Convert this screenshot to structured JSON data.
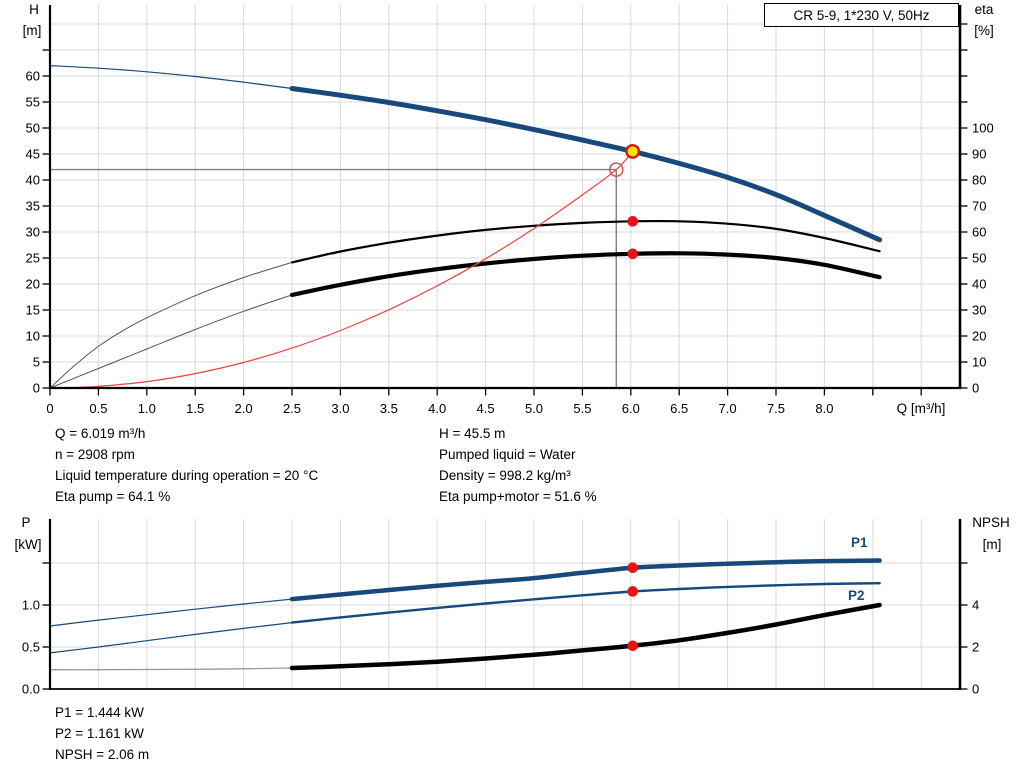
{
  "header": {
    "model_box": "CR 5-9, 1*230 V, 50Hz"
  },
  "colors": {
    "blue": "#17497c",
    "black": "#000000",
    "gray_thin": "#555555",
    "light_gray_thin": "#999999",
    "red": "#ef4040",
    "dot_red": "#ee1111",
    "duty_fill": "#ffe800",
    "duty_ring": "#dd1111",
    "grid": "#d9d9d9",
    "ref_line": "#808080",
    "axis": "#000000"
  },
  "top_chart": {
    "left_axis_title": [
      "H",
      "[m]"
    ],
    "right_axis_title": [
      "eta",
      "[%]"
    ],
    "x_axis": {
      "title": "Q [m³/h]",
      "step": 0.5,
      "ticks": 19,
      "labels": [
        "0",
        "0.5",
        "1.0",
        "1.5",
        "2.0",
        "2.5",
        "3.0",
        "3.5",
        "4.0",
        "4.5",
        "5.0",
        "5.5",
        "6.0",
        "6.5",
        "7.0",
        "7.5",
        "8.0"
      ]
    },
    "h_axis": {
      "step": 5,
      "ticks": 14,
      "labels": [
        "0",
        "5",
        "10",
        "15",
        "20",
        "25",
        "30",
        "35",
        "40",
        "45",
        "50",
        "55",
        "60"
      ]
    },
    "eta_axis": {
      "step": 10,
      "ticks": 15,
      "labels": [
        "0",
        "10",
        "20",
        "30",
        "40",
        "50",
        "60",
        "70",
        "80",
        "90",
        "100"
      ]
    }
  },
  "bottom_chart": {
    "left_axis_title": [
      "P",
      "[kW]"
    ],
    "right_axis_title": [
      "NPSH",
      "[m]"
    ],
    "p_axis": {
      "step": 0.5,
      "ticks": 4,
      "labels": [
        "0.0",
        "0.5",
        "1.0"
      ]
    },
    "npsh_axis": {
      "step": 2,
      "ticks": 4,
      "labels": [
        "0",
        "2",
        "4"
      ]
    },
    "series_labels": {
      "p1": "P1",
      "p2": "P2"
    }
  },
  "info_top": {
    "left": [
      "Q = 6.019 m³/h",
      "n = 2908 rpm",
      "Liquid temperature during operation = 20 °C",
      "Eta pump = 64.1 %"
    ],
    "right": [
      "H = 45.5 m",
      "Pumped liquid = Water",
      "Density = 998.2 kg/m³",
      "Eta pump+motor = 51.6 %"
    ]
  },
  "info_bottom": [
    "P1 = 1.444 kW",
    "P2 = 1.161 kW",
    "NPSH = 2.06 m"
  ],
  "chart_data": [
    {
      "type": "line",
      "title": "Pump head and efficiency vs flow",
      "xlabel": "Q [m³/h]",
      "x_range": [
        0,
        9.4
      ],
      "ylabel_left": "H [m]",
      "y_left_range": [
        0,
        73
      ],
      "ylabel_right": "eta [%]",
      "y_right_range": [
        0,
        146
      ],
      "grid": true,
      "series": [
        {
          "name": "qh-thin",
          "axis": "H",
          "color": "blue",
          "width": 1.2,
          "points": [
            [
              0,
              62
            ],
            [
              0.5,
              61.5
            ],
            [
              1,
              60.8
            ],
            [
              1.5,
              59.9
            ],
            [
              2,
              58.8
            ],
            [
              2.5,
              57.6
            ]
          ]
        },
        {
          "name": "qh",
          "axis": "H",
          "color": "blue",
          "width": 5,
          "points": [
            [
              2.5,
              57.6
            ],
            [
              3,
              56.3
            ],
            [
              3.5,
              54.9
            ],
            [
              4,
              53.3
            ],
            [
              4.5,
              51.6
            ],
            [
              5,
              49.7
            ],
            [
              5.5,
              47.7
            ],
            [
              6.019,
              45.5
            ],
            [
              6.5,
              43.2
            ],
            [
              7,
              40.5
            ],
            [
              7.5,
              37.2
            ],
            [
              8,
              33.2
            ],
            [
              8.57,
              28.5
            ]
          ]
        },
        {
          "name": "eta-pump-thin",
          "axis": "eta",
          "color": "gray_thin",
          "width": 1,
          "points": [
            [
              0,
              0
            ],
            [
              0.25,
              8.5
            ],
            [
              0.5,
              16
            ],
            [
              0.75,
              22
            ],
            [
              1,
              27
            ],
            [
              1.5,
              35.5
            ],
            [
              2,
              42.5
            ],
            [
              2.5,
              48.3
            ]
          ]
        },
        {
          "name": "eta-pump",
          "axis": "eta",
          "color": "black",
          "width": 2.2,
          "points": [
            [
              2.5,
              48.3
            ],
            [
              3,
              52.5
            ],
            [
              3.5,
              55.9
            ],
            [
              4,
              58.6
            ],
            [
              4.5,
              60.8
            ],
            [
              5,
              62.4
            ],
            [
              5.5,
              63.5
            ],
            [
              6.019,
              64.1
            ],
            [
              6.5,
              64.1
            ],
            [
              7,
              63.2
            ],
            [
              7.5,
              61.2
            ],
            [
              8,
              57.7
            ],
            [
              8.57,
              52.6
            ]
          ]
        },
        {
          "name": "eta-pump-motor-thin",
          "axis": "eta",
          "color": "gray_thin",
          "width": 1,
          "points": [
            [
              0,
              0
            ],
            [
              0.5,
              7.5
            ],
            [
              1,
              15
            ],
            [
              1.5,
              22.5
            ],
            [
              2,
              29.5
            ],
            [
              2.5,
              35.8
            ]
          ]
        },
        {
          "name": "eta-pump-motor",
          "axis": "eta",
          "color": "black",
          "width": 4.2,
          "points": [
            [
              2.5,
              35.8
            ],
            [
              3,
              39.7
            ],
            [
              3.5,
              43
            ],
            [
              4,
              45.7
            ],
            [
              4.5,
              47.9
            ],
            [
              5,
              49.6
            ],
            [
              5.5,
              50.9
            ],
            [
              6.019,
              51.6
            ],
            [
              6.5,
              51.8
            ],
            [
              7,
              51.3
            ],
            [
              7.5,
              50
            ],
            [
              8,
              47.4
            ],
            [
              8.57,
              42.6
            ]
          ]
        },
        {
          "name": "system-curve",
          "axis": "H",
          "color": "red",
          "width": 1.2,
          "points": [
            [
              0.2,
              0.05
            ],
            [
              0.5,
              0.31
            ],
            [
              1,
              1.23
            ],
            [
              1.5,
              2.76
            ],
            [
              2,
              4.91
            ],
            [
              2.5,
              7.67
            ],
            [
              3,
              11.05
            ],
            [
              3.5,
              15.03
            ],
            [
              4,
              19.64
            ],
            [
              4.5,
              24.85
            ],
            [
              5,
              30.68
            ],
            [
              5.5,
              37.13
            ],
            [
              5.85,
              42
            ],
            [
              6.019,
              45.5
            ]
          ]
        }
      ],
      "markers": [
        {
          "name": "duty-point",
          "q": 6.019,
          "value": 45.5,
          "axis": "H",
          "style": "duty"
        },
        {
          "name": "rated-point",
          "q": 5.85,
          "value": 42.0,
          "axis": "H",
          "style": "open"
        },
        {
          "name": "eta-pump-point",
          "q": 6.019,
          "value": 64.1,
          "axis": "eta",
          "style": "dot"
        },
        {
          "name": "eta-pump-motor-point",
          "q": 6.019,
          "value": 51.6,
          "axis": "eta",
          "style": "dot"
        }
      ],
      "reference_lines": [
        {
          "type": "h",
          "axis": "H",
          "value": 42.0,
          "q_from": 0,
          "q_to": 5.85
        },
        {
          "type": "v",
          "q": 5.85,
          "axis": "H",
          "value_from": 0,
          "value_to": 42.0
        }
      ]
    },
    {
      "type": "line",
      "title": "Power and NPSH vs flow",
      "xlabel": "Q [m³/h]",
      "x_range": [
        0,
        9.4
      ],
      "ylabel_left": "P [kW]",
      "y_left_range": [
        0,
        2
      ],
      "ylabel_right": "NPSH [m]",
      "y_right_range": [
        0,
        8
      ],
      "grid": true,
      "series": [
        {
          "name": "p1-thin",
          "axis": "P",
          "color": "blue",
          "width": 1.2,
          "points": [
            [
              0,
              0.75
            ],
            [
              0.5,
              0.82
            ],
            [
              1,
              0.885
            ],
            [
              1.5,
              0.95
            ],
            [
              2,
              1.012
            ],
            [
              2.5,
              1.07
            ]
          ]
        },
        {
          "name": "p1",
          "axis": "P",
          "color": "blue",
          "width": 4.5,
          "points": [
            [
              2.5,
              1.07
            ],
            [
              3,
              1.125
            ],
            [
              3.5,
              1.178
            ],
            [
              4,
              1.228
            ],
            [
              4.5,
              1.275
            ],
            [
              5,
              1.32
            ],
            [
              5.5,
              1.383
            ],
            [
              6.019,
              1.444
            ],
            [
              6.5,
              1.47
            ],
            [
              7,
              1.492
            ],
            [
              7.5,
              1.51
            ],
            [
              8,
              1.523
            ],
            [
              8.57,
              1.53
            ]
          ]
        },
        {
          "name": "p2-thin",
          "axis": "P",
          "color": "blue",
          "width": 1.2,
          "points": [
            [
              0,
              0.43
            ],
            [
              0.5,
              0.5
            ],
            [
              1,
              0.575
            ],
            [
              1.5,
              0.65
            ],
            [
              2,
              0.722
            ],
            [
              2.5,
              0.79
            ]
          ]
        },
        {
          "name": "p2",
          "axis": "P",
          "color": "blue",
          "width": 2.4,
          "points": [
            [
              2.5,
              0.79
            ],
            [
              3,
              0.852
            ],
            [
              3.5,
              0.91
            ],
            [
              4,
              0.965
            ],
            [
              4.5,
              1.018
            ],
            [
              5,
              1.068
            ],
            [
              5.5,
              1.116
            ],
            [
              6.019,
              1.161
            ],
            [
              6.5,
              1.19
            ],
            [
              7,
              1.215
            ],
            [
              7.5,
              1.235
            ],
            [
              8,
              1.25
            ],
            [
              8.57,
              1.26
            ]
          ]
        },
        {
          "name": "npsh-thin",
          "axis": "NPSH",
          "color": "light_gray_thin",
          "width": 1.3,
          "points": [
            [
              0,
              0.92
            ],
            [
              0.5,
              0.92
            ],
            [
              1,
              0.93
            ],
            [
              1.5,
              0.94
            ],
            [
              2,
              0.96
            ],
            [
              2.5,
              1
            ]
          ]
        },
        {
          "name": "npsh",
          "axis": "NPSH",
          "color": "black",
          "width": 4.5,
          "points": [
            [
              2.5,
              1
            ],
            [
              3,
              1.08
            ],
            [
              3.5,
              1.18
            ],
            [
              4,
              1.3
            ],
            [
              4.5,
              1.45
            ],
            [
              5,
              1.63
            ],
            [
              5.5,
              1.84
            ],
            [
              6.019,
              2.06
            ],
            [
              6.5,
              2.32
            ],
            [
              7,
              2.67
            ],
            [
              7.5,
              3.07
            ],
            [
              8,
              3.52
            ],
            [
              8.57,
              4
            ]
          ]
        }
      ],
      "markers": [
        {
          "name": "p1-point",
          "q": 6.019,
          "value": 1.444,
          "axis": "P",
          "style": "dot"
        },
        {
          "name": "p2-point",
          "q": 6.019,
          "value": 1.161,
          "axis": "P",
          "style": "dot"
        },
        {
          "name": "npsh-point",
          "q": 6.019,
          "value": 2.06,
          "axis": "NPSH",
          "style": "dot"
        }
      ],
      "reference_lines": []
    }
  ]
}
